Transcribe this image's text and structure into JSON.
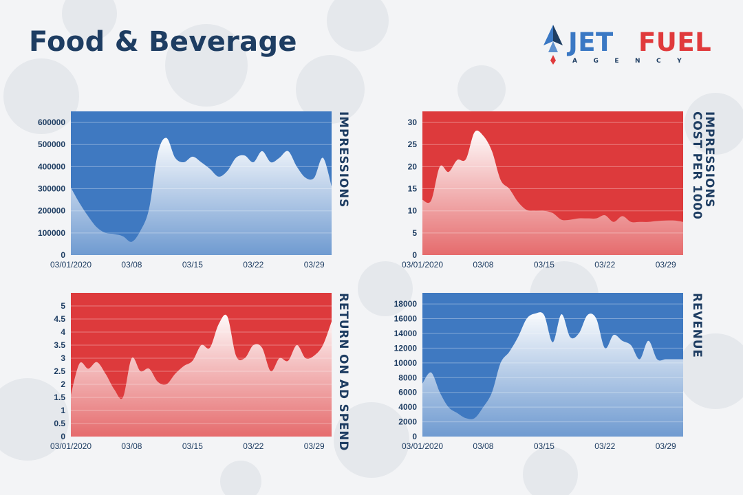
{
  "page": {
    "title": "Food & Beverage"
  },
  "logo": {
    "word1": "JET",
    "word2": "FUEL",
    "subtitle": "AGENCY"
  },
  "colors": {
    "blue": "#3f79c1",
    "red": "#dd3a3c",
    "navy": "#1e3d62",
    "logo_blue": "#3a78c4",
    "logo_red": "#e03a3c"
  },
  "chart_data": [
    {
      "type": "area",
      "ylabel": "IMPRESSIONS",
      "xlabel": "",
      "background_color": "#3f79c1",
      "x_ticks": [
        "03/01/2020",
        "03/08",
        "03/15",
        "03/22",
        "03/29"
      ],
      "x": [
        "03/01",
        "03/02",
        "03/03",
        "03/04",
        "03/05",
        "03/06",
        "03/07",
        "03/08",
        "03/09",
        "03/10",
        "03/11",
        "03/12",
        "03/13",
        "03/14",
        "03/15",
        "03/16",
        "03/17",
        "03/18",
        "03/19",
        "03/20",
        "03/21",
        "03/22",
        "03/23",
        "03/24",
        "03/25",
        "03/26",
        "03/27",
        "03/28",
        "03/29",
        "03/30",
        "03/31"
      ],
      "values": [
        305000,
        235000,
        175000,
        125000,
        100000,
        95000,
        85000,
        60000,
        110000,
        210000,
        460000,
        530000,
        440000,
        420000,
        445000,
        420000,
        390000,
        355000,
        380000,
        440000,
        450000,
        420000,
        470000,
        420000,
        440000,
        470000,
        400000,
        350000,
        350000,
        440000,
        310000
      ],
      "ylim": [
        0,
        650000
      ],
      "y_ticks": [
        0,
        100000,
        200000,
        300000,
        400000,
        500000,
        600000
      ],
      "y_tick_labels": [
        "0",
        "100000",
        "200000",
        "300000",
        "400000",
        "500000",
        "600000"
      ],
      "grid": true
    },
    {
      "type": "area",
      "ylabel": "COST PER 1000 IMPRESSIONS",
      "xlabel": "",
      "background_color": "#dd3a3c",
      "x_ticks": [
        "03/01/2020",
        "03/08",
        "03/15",
        "03/22",
        "03/29"
      ],
      "x": [
        "03/01",
        "03/02",
        "03/03",
        "03/04",
        "03/05",
        "03/06",
        "03/07",
        "03/08",
        "03/09",
        "03/10",
        "03/11",
        "03/12",
        "03/13",
        "03/14",
        "03/15",
        "03/16",
        "03/17",
        "03/18",
        "03/19",
        "03/20",
        "03/21",
        "03/22",
        "03/23",
        "03/24",
        "03/25",
        "03/26",
        "03/27",
        "03/28",
        "03/29",
        "03/30",
        "03/31"
      ],
      "values": [
        12.5,
        12.3,
        20,
        18.8,
        21.5,
        21.7,
        27.8,
        27,
        23.5,
        17,
        15,
        12,
        10.2,
        10,
        10,
        9.5,
        8,
        8,
        8.3,
        8.3,
        8.3,
        9,
        7.5,
        8.8,
        7.5,
        7.5,
        7.5,
        7.7,
        7.8,
        7.8,
        7.5
      ],
      "ylim": [
        0,
        32.5
      ],
      "y_ticks": [
        0,
        5,
        10,
        15,
        20,
        25,
        30
      ],
      "y_tick_labels": [
        "0",
        "5",
        "10",
        "15",
        "20",
        "25",
        "30"
      ],
      "grid": true
    },
    {
      "type": "area",
      "ylabel": "RETURN ON AD SPEND",
      "xlabel": "",
      "background_color": "#dd3a3c",
      "x_ticks": [
        "03/01/2020",
        "03/08",
        "03/15",
        "03/22",
        "03/29"
      ],
      "x": [
        "03/01",
        "03/02",
        "03/03",
        "03/04",
        "03/05",
        "03/06",
        "03/07",
        "03/08",
        "03/09",
        "03/10",
        "03/11",
        "03/12",
        "03/13",
        "03/14",
        "03/15",
        "03/16",
        "03/17",
        "03/18",
        "03/19",
        "03/20",
        "03/21",
        "03/22",
        "03/23",
        "03/24",
        "03/25",
        "03/26",
        "03/27",
        "03/28",
        "03/29",
        "03/30",
        "03/31"
      ],
      "values": [
        1.6,
        2.8,
        2.6,
        2.85,
        2.4,
        1.8,
        1.5,
        3,
        2.5,
        2.6,
        2.1,
        2,
        2.4,
        2.7,
        2.9,
        3.5,
        3.4,
        4.3,
        4.6,
        3.1,
        3,
        3.5,
        3.4,
        2.5,
        3,
        2.9,
        3.5,
        3,
        3.1,
        3.5,
        4.4
      ],
      "ylim": [
        0,
        5.5
      ],
      "y_ticks": [
        0,
        0.5,
        1,
        1.5,
        2,
        2.5,
        3,
        3.5,
        4,
        4.5,
        5
      ],
      "y_tick_labels": [
        "0",
        "0.5",
        "1",
        "1.5",
        "2",
        "2.5",
        "3",
        "3.5",
        "4",
        "4.5",
        "5"
      ],
      "grid": true
    },
    {
      "type": "area",
      "ylabel": "REVENUE",
      "xlabel": "",
      "background_color": "#3f79c1",
      "x_ticks": [
        "03/01/2020",
        "03/08",
        "03/15",
        "03/22",
        "03/29"
      ],
      "x": [
        "03/01",
        "03/02",
        "03/03",
        "03/04",
        "03/05",
        "03/06",
        "03/07",
        "03/08",
        "03/09",
        "03/10",
        "03/11",
        "03/12",
        "03/13",
        "03/14",
        "03/15",
        "03/16",
        "03/17",
        "03/18",
        "03/19",
        "03/20",
        "03/21",
        "03/22",
        "03/23",
        "03/24",
        "03/25",
        "03/26",
        "03/27",
        "03/28",
        "03/29",
        "03/30",
        "03/31"
      ],
      "values": [
        7200,
        8700,
        6000,
        4000,
        3200,
        2500,
        2500,
        4000,
        6000,
        10000,
        11500,
        13500,
        16000,
        16700,
        16500,
        12800,
        16600,
        13500,
        14000,
        16500,
        16000,
        12000,
        13800,
        13000,
        12400,
        10500,
        13000,
        10500,
        10500,
        10500,
        10500
      ],
      "ylim": [
        0,
        19500
      ],
      "y_ticks": [
        0,
        2000,
        4000,
        6000,
        8000,
        10000,
        12000,
        14000,
        16000,
        18000
      ],
      "y_tick_labels": [
        "0",
        "2000",
        "4000",
        "6000",
        "8000",
        "10000",
        "12000",
        "14000",
        "16000",
        "18000"
      ],
      "grid": true
    }
  ]
}
